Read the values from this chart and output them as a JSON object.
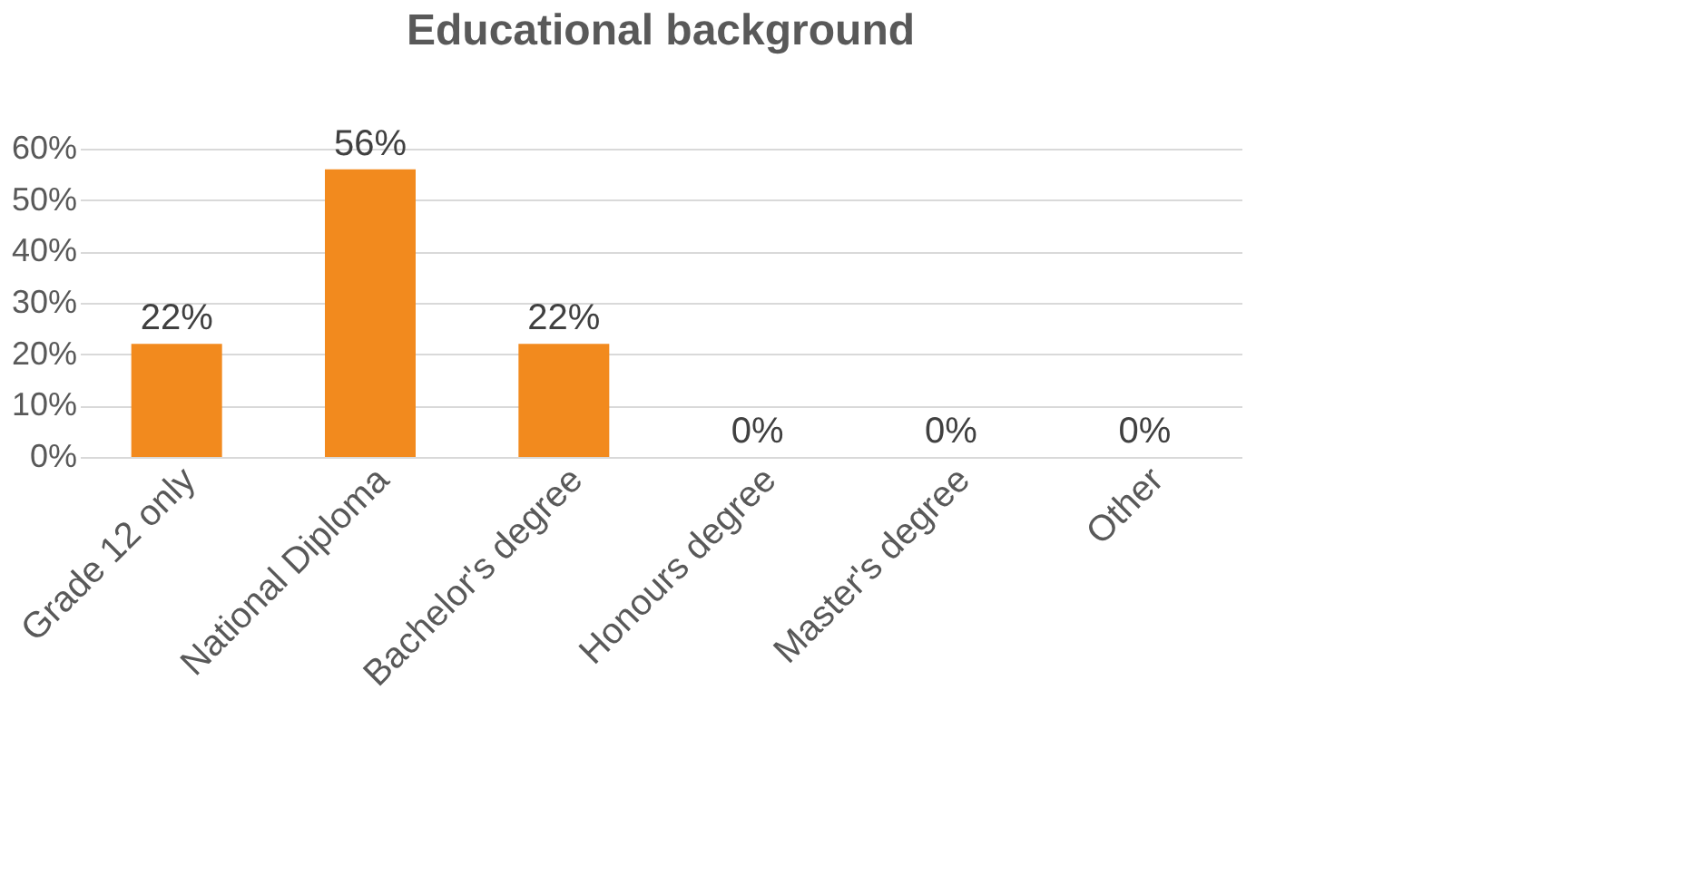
{
  "chart_data": {
    "type": "bar",
    "title": "Educational background",
    "categories": [
      "Grade 12 only",
      "National Diploma",
      "Bachelor's degree",
      "Honours degree",
      "Master's degree",
      "Other"
    ],
    "values": [
      22,
      56,
      22,
      0,
      0,
      0
    ],
    "value_labels": [
      "22%",
      "56%",
      "22%",
      "0%",
      "0%",
      "0%"
    ],
    "color": "#f28a1e",
    "ylim": [
      0,
      60
    ],
    "yticks": [
      {
        "value": 0,
        "label": "0%"
      },
      {
        "value": 10,
        "label": "10%"
      },
      {
        "value": 20,
        "label": "20%"
      },
      {
        "value": 30,
        "label": "30%"
      },
      {
        "value": 40,
        "label": "40%"
      },
      {
        "value": 50,
        "label": "50%"
      },
      {
        "value": 60,
        "label": "60%"
      }
    ],
    "grid": "y"
  }
}
